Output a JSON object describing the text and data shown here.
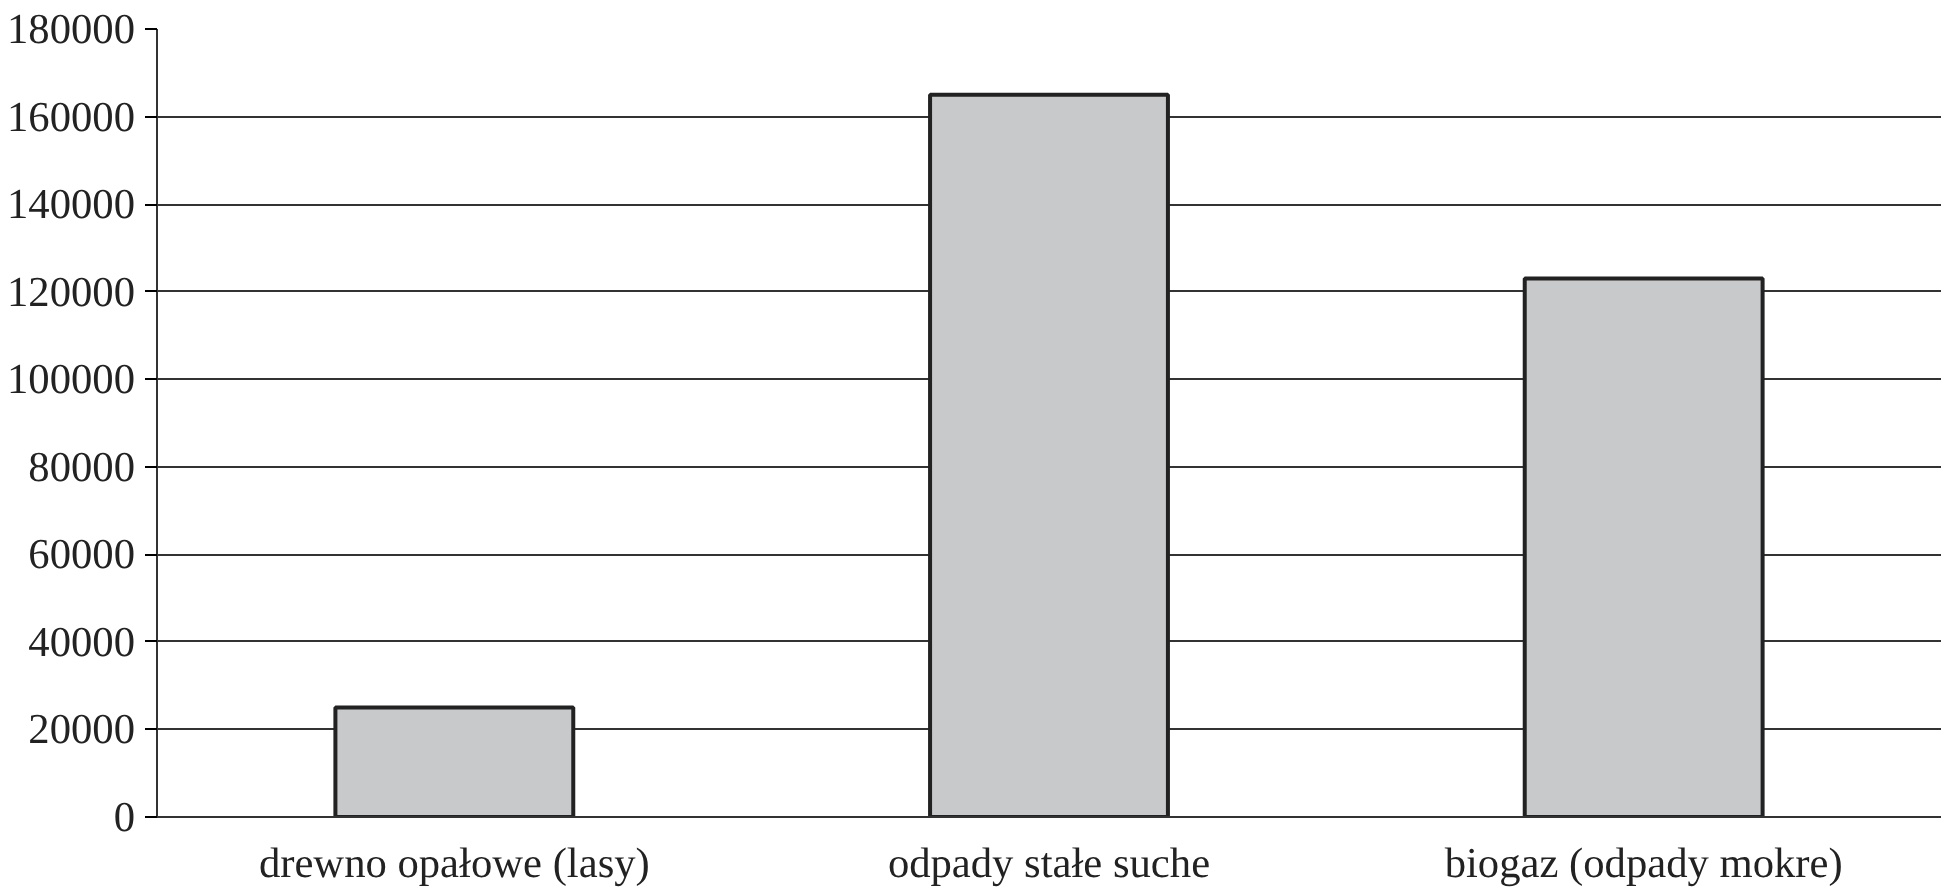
{
  "chart_data": {
    "type": "bar",
    "categories": [
      "drewno opałowe (lasy)",
      "odpady stałe suche",
      "biogaz (odpady mokre)"
    ],
    "values": [
      25000,
      165000,
      123000
    ],
    "color": "#c8c9cb",
    "ylim": [
      0,
      180000
    ],
    "yticks": [
      0,
      20000,
      40000,
      60000,
      80000,
      100000,
      120000,
      140000,
      160000,
      180000
    ],
    "grid": "y"
  }
}
